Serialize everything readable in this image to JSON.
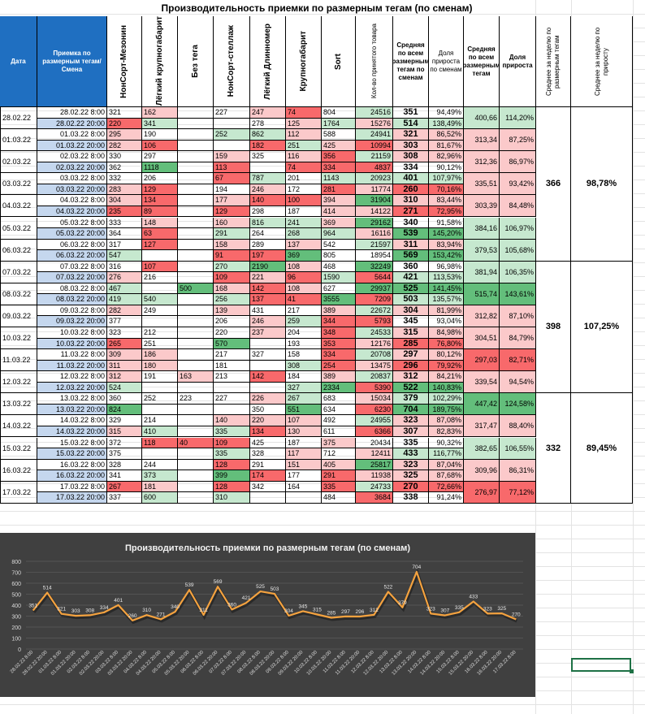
{
  "title": "Производительность приемки по размерным тегам (по сменам)",
  "headers": {
    "date": "Дата",
    "shift": "Приемка по размерным тегам/Смена",
    "nonsort_mez": "НонСорт-Мезонин",
    "light_kgb": "Лёгкий крупногабарит",
    "no_tag": "Без тега",
    "nonsort_st": "НонСорт-стеллаж",
    "light_long": "Лёгкий Длинномер",
    "kgb": "Крупногабарит",
    "sort": "Sort",
    "qty": "Кол-во принятого товара",
    "avg_all": "Средняя по всем размерным тегам по сменам",
    "growth_share": "Доля прироста по сменам",
    "avg_day": "Средняя по всем размерным тегам",
    "growth_day": "Доля прироста",
    "week_avg": "Среднее за неделю по размерным тегам",
    "week_growth": "Среднее за неделю по приросту"
  },
  "rows": [
    {
      "date": "28.02.22",
      "shift": "28.02.22 8:00",
      "v": [
        "321",
        "162",
        "",
        "227",
        "247",
        "74",
        "804",
        "24516",
        "351",
        "94,49%"
      ],
      "d": [
        "400,66",
        "114,20%"
      ]
    },
    {
      "date": "",
      "shift": "28.02.22 20:00",
      "v": [
        "220",
        "341",
        "",
        "",
        "278",
        "125",
        "1764",
        "15276",
        "514",
        "138,49%"
      ]
    },
    {
      "date": "01.03.22",
      "shift": "01.03.22 8:00",
      "v": [
        "295",
        "190",
        "",
        "252",
        "862",
        "112",
        "588",
        "24941",
        "321",
        "86,52%"
      ],
      "d": [
        "313,34",
        "87,25%"
      ]
    },
    {
      "date": "",
      "shift": "01.03.22 20:00",
      "v": [
        "282",
        "106",
        "",
        "",
        "182",
        "251",
        "425",
        "10994",
        "303",
        "81,67%"
      ]
    },
    {
      "date": "02.03.22",
      "shift": "02.03.22 8:00",
      "v": [
        "330",
        "297",
        "",
        "159",
        "325",
        "116",
        "356",
        "21159",
        "308",
        "82,96%"
      ],
      "d": [
        "312,36",
        "86,97%"
      ]
    },
    {
      "date": "",
      "shift": "02.03.22 20:00",
      "v": [
        "362",
        "1118",
        "",
        "113",
        "",
        "74",
        "334",
        "4837",
        "334",
        "90,12%"
      ]
    },
    {
      "date": "03.03.22",
      "shift": "03.03.22 8:00",
      "v": [
        "332",
        "206",
        "",
        "67",
        "787",
        "201",
        "1143",
        "20923",
        "401",
        "107,97%"
      ],
      "d": [
        "335,51",
        "93,42%"
      ]
    },
    {
      "date": "",
      "shift": "03.03.22 20:00",
      "v": [
        "283",
        "129",
        "",
        "194",
        "246",
        "172",
        "281",
        "11774",
        "260",
        "70,16%"
      ]
    },
    {
      "date": "04.03.22",
      "shift": "04.03.22 8:00",
      "v": [
        "304",
        "134",
        "",
        "177",
        "140",
        "100",
        "394",
        "31904",
        "310",
        "83,44%"
      ],
      "d": [
        "303,39",
        "84,48%"
      ]
    },
    {
      "date": "",
      "shift": "04.03.22 20:00",
      "v": [
        "235",
        "89",
        "",
        "129",
        "298",
        "187",
        "414",
        "14122",
        "271",
        "72,95%"
      ]
    },
    {
      "date": "05.03.22",
      "shift": "05.03.22 8:00",
      "v": [
        "333",
        "148",
        "",
        "160",
        "816",
        "241",
        "369",
        "29162",
        "340",
        "91,58%"
      ],
      "d": [
        "384,16",
        "106,97%"
      ]
    },
    {
      "date": "",
      "shift": "05.03.22 20:00",
      "v": [
        "364",
        "63",
        "",
        "291",
        "264",
        "268",
        "964",
        "16116",
        "539",
        "145,20%"
      ]
    },
    {
      "date": "06.03.22",
      "shift": "06.03.22 8:00",
      "v": [
        "317",
        "127",
        "",
        "158",
        "289",
        "137",
        "542",
        "21597",
        "311",
        "83,94%"
      ],
      "d": [
        "379,53",
        "105,68%"
      ]
    },
    {
      "date": "",
      "shift": "06.03.22 20:00",
      "v": [
        "547",
        "",
        "",
        "91",
        "197",
        "369",
        "805",
        "18954",
        "569",
        "153,42%"
      ]
    },
    {
      "date": "07.03.22",
      "shift": "07.03.22 8:00",
      "v": [
        "316",
        "107",
        "",
        "270",
        "2190",
        "108",
        "468",
        "32249",
        "360",
        "96,98%"
      ],
      "d": [
        "381,94",
        "106,35%"
      ]
    },
    {
      "date": "",
      "shift": "07.03.22 20:00",
      "v": [
        "276",
        "216",
        "",
        "109",
        "221",
        "96",
        "1590",
        "5644",
        "421",
        "113,53%"
      ]
    },
    {
      "date": "08.03.22",
      "shift": "08.03.22 8:00",
      "v": [
        "467",
        "",
        "500",
        "168",
        "142",
        "108",
        "627",
        "29937",
        "525",
        "141,45%"
      ],
      "d": [
        "515,74",
        "143,61%"
      ]
    },
    {
      "date": "",
      "shift": "08.03.22 20:00",
      "v": [
        "419",
        "540",
        "",
        "256",
        "137",
        "41",
        "3555",
        "7209",
        "503",
        "135,57%"
      ]
    },
    {
      "date": "09.03.22",
      "shift": "09.03.22 8:00",
      "v": [
        "282",
        "249",
        "",
        "139",
        "431",
        "217",
        "389",
        "22672",
        "304",
        "81,99%"
      ],
      "d": [
        "312,82",
        "87,10%"
      ]
    },
    {
      "date": "",
      "shift": "09.03.22 20:00",
      "v": [
        "377",
        "",
        "",
        "206",
        "246",
        "259",
        "344",
        "5793",
        "345",
        "93,04%"
      ]
    },
    {
      "date": "10.03.22",
      "shift": "10.03.22 8:00",
      "v": [
        "323",
        "212",
        "",
        "220",
        "237",
        "204",
        "348",
        "24533",
        "315",
        "84,98%"
      ],
      "d": [
        "304,51",
        "84,79%"
      ]
    },
    {
      "date": "",
      "shift": "10.03.22 20:00",
      "v": [
        "265",
        "251",
        "",
        "570",
        "",
        "193",
        "353",
        "12176",
        "285",
        "76,80%"
      ]
    },
    {
      "date": "11.03.22",
      "shift": "11.03.22 8:00",
      "v": [
        "309",
        "186",
        "",
        "217",
        "327",
        "158",
        "334",
        "20708",
        "297",
        "80,12%"
      ],
      "d": [
        "297,03",
        "82,71%"
      ]
    },
    {
      "date": "",
      "shift": "11.03.22 20:00",
      "v": [
        "311",
        "180",
        "",
        "181",
        "",
        "308",
        "254",
        "13475",
        "296",
        "79,92%"
      ]
    },
    {
      "date": "12.03.22",
      "shift": "12.03.22 8:00",
      "v": [
        "312",
        "191",
        "163",
        "213",
        "142",
        "184",
        "389",
        "20837",
        "312",
        "84,21%"
      ],
      "d": [
        "339,54",
        "94,54%"
      ]
    },
    {
      "date": "",
      "shift": "12.03.22 20:00",
      "v": [
        "524",
        "",
        "",
        "",
        "",
        "327",
        "2334",
        "5390",
        "522",
        "140,83%"
      ]
    },
    {
      "date": "13.03.22",
      "shift": "13.03.22 8:00",
      "v": [
        "360",
        "252",
        "223",
        "227",
        "226",
        "267",
        "683",
        "15034",
        "379",
        "102,29%"
      ],
      "d": [
        "447,42",
        "124,58%"
      ]
    },
    {
      "date": "",
      "shift": "13.03.22 20:00",
      "v": [
        "824",
        "",
        "",
        "",
        "350",
        "551",
        "634",
        "6230",
        "704",
        "189,75%"
      ]
    },
    {
      "date": "14.03.22",
      "shift": "14.03.22 8:00",
      "v": [
        "329",
        "214",
        "",
        "140",
        "220",
        "107",
        "492",
        "24955",
        "323",
        "87,08%"
      ],
      "d": [
        "317,47",
        "88,40%"
      ]
    },
    {
      "date": "",
      "shift": "14.03.22 20:00",
      "v": [
        "315",
        "410",
        "",
        "335",
        "134",
        "130",
        "611",
        "6366",
        "307",
        "82,83%"
      ]
    },
    {
      "date": "15.03.22",
      "shift": "15.03.22 8:00",
      "v": [
        "372",
        "118",
        "40",
        "109",
        "425",
        "187",
        "375",
        "20434",
        "335",
        "90,32%"
      ],
      "d": [
        "382,65",
        "106,55%"
      ]
    },
    {
      "date": "",
      "shift": "15.03.22 20:00",
      "v": [
        "375",
        "",
        "",
        "335",
        "328",
        "117",
        "712",
        "12411",
        "433",
        "116,77%"
      ]
    },
    {
      "date": "16.03.22",
      "shift": "16.03.22 8:00",
      "v": [
        "328",
        "244",
        "",
        "128",
        "291",
        "151",
        "405",
        "25817",
        "323",
        "87,04%"
      ],
      "d": [
        "309,96",
        "86,31%"
      ]
    },
    {
      "date": "",
      "shift": "16.03.22 20:00",
      "v": [
        "341",
        "373",
        "",
        "399",
        "174",
        "177",
        "291",
        "11938",
        "325",
        "87,68%"
      ]
    },
    {
      "date": "17.03.22",
      "shift": "17.03.22 8:00",
      "v": [
        "267",
        "181",
        "",
        "128",
        "342",
        "164",
        "335",
        "24733",
        "270",
        "72,66%"
      ],
      "d": [
        "276,97",
        "77,12%"
      ]
    },
    {
      "date": "",
      "shift": "17.03.22 20:00",
      "v": [
        "337",
        "600",
        "",
        "310",
        "",
        "",
        "484",
        "3684",
        "338",
        "91,24%"
      ]
    }
  ],
  "weeks": [
    {
      "avg": "366",
      "growth": "98,78%"
    },
    {
      "avg": "398",
      "growth": "107,25%"
    },
    {
      "avg": "332",
      "growth": "89,45%"
    }
  ],
  "colors": {
    "header_blue": "#1f6fc1",
    "shift_blue": "#c5d7ee",
    "green_strong": "#63be7b",
    "green_light": "#c6e8cf",
    "red_strong": "#f8696b",
    "red_light": "#fbc9ca",
    "chart_bg": "#404040",
    "line": "#f4a23f"
  },
  "chart_data": {
    "type": "line",
    "title": "Производительность приемки по размерным тегам (по сменам)",
    "categories": [
      "28.02.22 8:00",
      "28.02.22 20:00",
      "01.03.22 8:00",
      "01.03.22 20:00",
      "02.03.22 8:00",
      "02.03.22 20:00",
      "03.03.22 8:00",
      "03.03.22 20:00",
      "04.03.22 8:00",
      "04.03.22 20:00",
      "05.03.22 8:00",
      "05.03.22 20:00",
      "06.03.22 8:00",
      "06.03.22 20:00",
      "07.03.22 8:00",
      "07.03.22 20:00",
      "08.03.22 8:00",
      "08.03.22 20:00",
      "09.03.22 8:00",
      "09.03.22 20:00",
      "10.03.22 8:00",
      "10.03.22 20:00",
      "11.03.22 8:00",
      "11.03.22 20:00",
      "12.03.22 8:00",
      "12.03.22 20:00",
      "13.03.22 8:00",
      "13.03.22 20:00",
      "14.03.22 8:00",
      "14.03.22 20:00",
      "15.03.22 8:00",
      "15.03.22 20:00",
      "16.03.22 8:00",
      "16.03.22 20:00",
      "17.03.22 8:00"
    ],
    "values": [
      351,
      514,
      321,
      303,
      308,
      334,
      401,
      260,
      310,
      271,
      340,
      539,
      311,
      569,
      360,
      421,
      525,
      503,
      304,
      345,
      315,
      285,
      297,
      296,
      312,
      522,
      379,
      704,
      323,
      307,
      335,
      433,
      323,
      325,
      270
    ],
    "ylim": [
      0,
      800
    ],
    "yticks": [
      "0",
      "100",
      "200",
      "300",
      "400",
      "500",
      "600",
      "700",
      "800"
    ],
    "grid": true
  }
}
